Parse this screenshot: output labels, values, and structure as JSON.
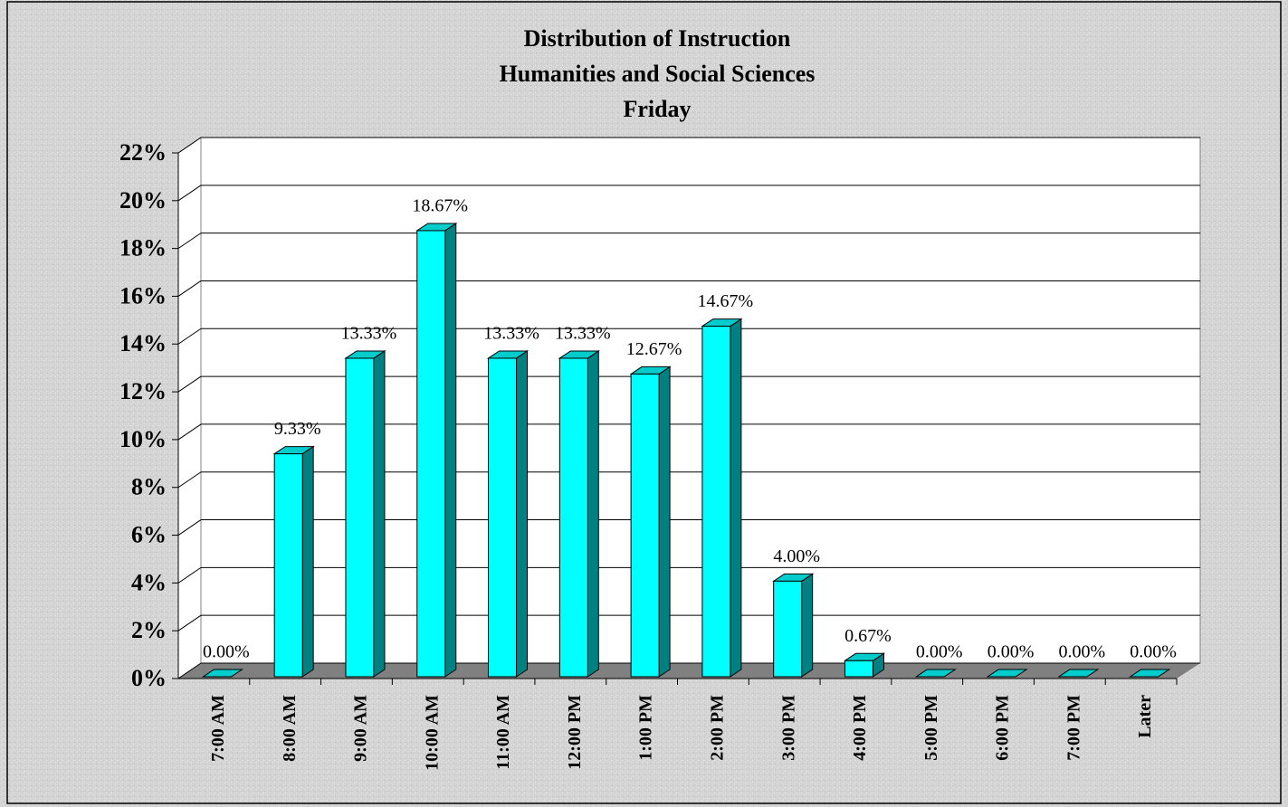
{
  "chart_data": {
    "type": "bar",
    "title": [
      "Distribution of Instruction",
      "Humanities and Social Sciences",
      "Friday"
    ],
    "categories": [
      "7:00 AM",
      "8:00 AM",
      "9:00 AM",
      "10:00 AM",
      "11:00 AM",
      "12:00 PM",
      "1:00 PM",
      "2:00 PM",
      "3:00 PM",
      "4:00 PM",
      "5:00 PM",
      "6:00 PM",
      "7:00 PM",
      "Later"
    ],
    "values": [
      0,
      9.33,
      13.33,
      18.67,
      13.33,
      13.33,
      12.67,
      14.67,
      4.0,
      0.67,
      0,
      0,
      0,
      0
    ],
    "value_labels": [
      "0.00%",
      "9.33%",
      "13.33%",
      "18.67%",
      "13.33%",
      "13.33%",
      "12.67%",
      "14.67%",
      "4.00%",
      "0.67%",
      "0.00%",
      "0.00%",
      "0.00%",
      "0.00%"
    ],
    "color": "#00ffff",
    "ylim": [
      0,
      22
    ],
    "yticks": [
      {
        "value": 0,
        "label": "0%"
      },
      {
        "value": 2,
        "label": "2%"
      },
      {
        "value": 4,
        "label": "4%"
      },
      {
        "value": 6,
        "label": "6%"
      },
      {
        "value": 8,
        "label": "8%"
      },
      {
        "value": 10,
        "label": "10%"
      },
      {
        "value": 12,
        "label": "12%"
      },
      {
        "value": 14,
        "label": "14%"
      },
      {
        "value": 16,
        "label": "16%"
      },
      {
        "value": 18,
        "label": "18%"
      },
      {
        "value": 20,
        "label": "20%"
      },
      {
        "value": 22,
        "label": "22%"
      }
    ],
    "grid": true
  }
}
